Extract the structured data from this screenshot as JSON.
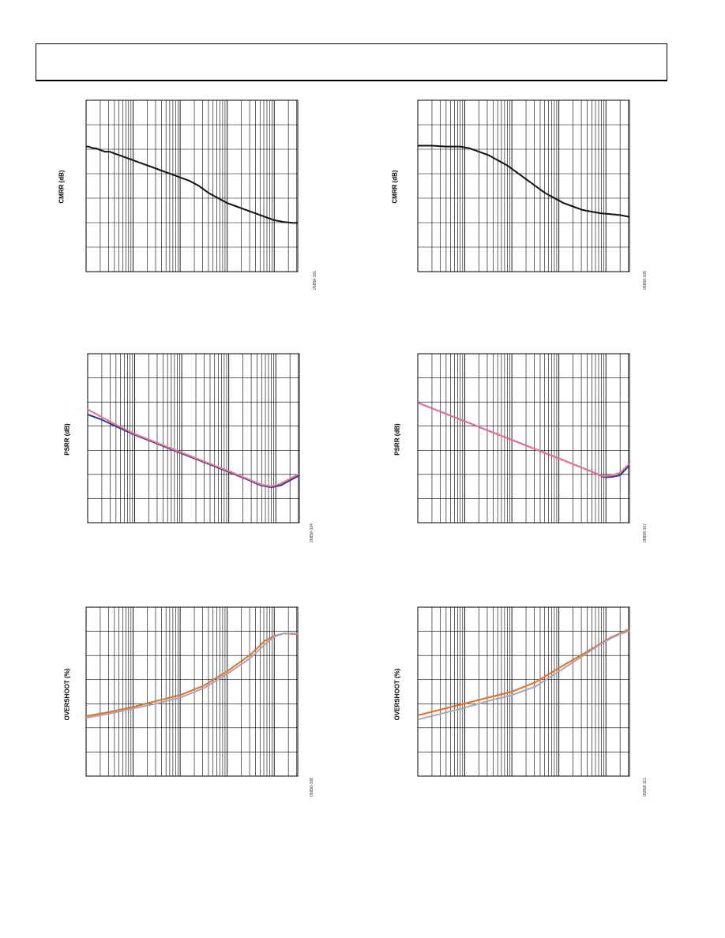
{
  "page": {
    "header_title": ""
  },
  "chart_data": [
    {
      "type": "line",
      "ylabel": "CMRR (dB)",
      "figure_id": "05858-101",
      "xscale": "log",
      "decades": 4.5,
      "grid": true,
      "series": [
        {
          "color": "#111111",
          "points": [
            [
              0.0,
              0.27
            ],
            [
              0.05,
              0.27
            ],
            [
              0.1,
              0.275
            ],
            [
              0.15,
              0.28
            ],
            [
              0.2,
              0.28
            ],
            [
              0.3,
              0.29
            ],
            [
              0.4,
              0.3
            ],
            [
              0.5,
              0.3
            ],
            [
              0.6,
              0.31
            ],
            [
              0.7,
              0.32
            ],
            [
              0.8,
              0.33
            ],
            [
              1.0,
              0.35
            ],
            [
              1.2,
              0.37
            ],
            [
              1.4,
              0.39
            ],
            [
              1.6,
              0.41
            ],
            [
              1.8,
              0.43
            ],
            [
              2.0,
              0.45
            ],
            [
              2.2,
              0.47
            ],
            [
              2.4,
              0.5
            ],
            [
              2.6,
              0.54
            ],
            [
              2.8,
              0.57
            ],
            [
              3.0,
              0.6
            ],
            [
              3.2,
              0.62
            ],
            [
              3.4,
              0.64
            ],
            [
              3.6,
              0.66
            ],
            [
              3.8,
              0.68
            ],
            [
              4.0,
              0.7
            ],
            [
              4.2,
              0.71
            ],
            [
              4.4,
              0.715
            ],
            [
              4.5,
              0.715
            ]
          ]
        }
      ]
    },
    {
      "type": "line",
      "ylabel": "CMRR (dB)",
      "figure_id": "05858-105",
      "xscale": "log",
      "decades": 4.5,
      "grid": true,
      "series": [
        {
          "color": "#111111",
          "points": [
            [
              0.0,
              0.265
            ],
            [
              0.3,
              0.265
            ],
            [
              0.6,
              0.27
            ],
            [
              0.9,
              0.27
            ],
            [
              1.1,
              0.28
            ],
            [
              1.3,
              0.3
            ],
            [
              1.5,
              0.32
            ],
            [
              1.7,
              0.35
            ],
            [
              1.9,
              0.38
            ],
            [
              2.1,
              0.42
            ],
            [
              2.3,
              0.46
            ],
            [
              2.5,
              0.5
            ],
            [
              2.7,
              0.54
            ],
            [
              2.9,
              0.57
            ],
            [
              3.1,
              0.6
            ],
            [
              3.3,
              0.62
            ],
            [
              3.5,
              0.64
            ],
            [
              3.7,
              0.65
            ],
            [
              3.9,
              0.66
            ],
            [
              4.1,
              0.665
            ],
            [
              4.3,
              0.67
            ],
            [
              4.5,
              0.68
            ]
          ]
        }
      ]
    },
    {
      "type": "line",
      "ylabel": "PSRR (dB)",
      "figure_id": "05858-104",
      "xscale": "log",
      "decades": 4.5,
      "grid": true,
      "series": [
        {
          "color": "#1f3f8f",
          "points": [
            [
              0.0,
              0.36
            ],
            [
              0.3,
              0.39
            ],
            [
              0.6,
              0.43
            ],
            [
              1.0,
              0.48
            ],
            [
              1.5,
              0.535
            ],
            [
              2.0,
              0.59
            ],
            [
              2.5,
              0.645
            ],
            [
              3.0,
              0.7
            ],
            [
              3.4,
              0.745
            ],
            [
              3.6,
              0.77
            ],
            [
              3.7,
              0.78
            ],
            [
              3.9,
              0.79
            ],
            [
              4.1,
              0.78
            ],
            [
              4.3,
              0.75
            ],
            [
              4.5,
              0.72
            ]
          ]
        },
        {
          "color": "#f07090",
          "points": [
            [
              0.0,
              0.33
            ],
            [
              0.3,
              0.375
            ],
            [
              0.6,
              0.42
            ],
            [
              1.0,
              0.475
            ],
            [
              1.5,
              0.53
            ],
            [
              2.0,
              0.585
            ],
            [
              2.5,
              0.64
            ],
            [
              3.0,
              0.695
            ],
            [
              3.4,
              0.74
            ],
            [
              3.6,
              0.765
            ],
            [
              3.7,
              0.775
            ],
            [
              3.9,
              0.785
            ],
            [
              4.1,
              0.77
            ],
            [
              4.3,
              0.74
            ],
            [
              4.5,
              0.71
            ]
          ]
        }
      ]
    },
    {
      "type": "line",
      "ylabel": "PSRR (dB)",
      "figure_id": "05858-107",
      "xscale": "log",
      "decades": 4.5,
      "grid": true,
      "series": [
        {
          "color": "#1f3f8f",
          "points": [
            [
              0.0,
              0.29
            ],
            [
              0.5,
              0.345
            ],
            [
              1.0,
              0.4
            ],
            [
              1.5,
              0.455
            ],
            [
              2.0,
              0.51
            ],
            [
              2.5,
              0.565
            ],
            [
              3.0,
              0.62
            ],
            [
              3.5,
              0.675
            ],
            [
              3.8,
              0.71
            ],
            [
              3.95,
              0.73
            ],
            [
              4.1,
              0.73
            ],
            [
              4.3,
              0.72
            ],
            [
              4.5,
              0.66
            ]
          ]
        },
        {
          "color": "#f07090",
          "points": [
            [
              0.0,
              0.29
            ],
            [
              0.5,
              0.345
            ],
            [
              1.0,
              0.4
            ],
            [
              1.5,
              0.455
            ],
            [
              2.0,
              0.51
            ],
            [
              2.5,
              0.565
            ],
            [
              3.0,
              0.62
            ],
            [
              3.5,
              0.675
            ],
            [
              3.8,
              0.71
            ],
            [
              3.95,
              0.725
            ],
            [
              4.1,
              0.72
            ],
            [
              4.3,
              0.705
            ],
            [
              4.5,
              0.65
            ]
          ]
        }
      ]
    },
    {
      "type": "line",
      "ylabel": "OVERSHOOT (%)",
      "figure_id": "05858-108",
      "xscale": "log",
      "decades": 4.5,
      "grid": true,
      "series": [
        {
          "color": "#ee6a1a",
          "points": [
            [
              0.0,
              0.645
            ],
            [
              0.5,
              0.62
            ],
            [
              1.0,
              0.59
            ],
            [
              1.5,
              0.555
            ],
            [
              2.0,
              0.52
            ],
            [
              2.5,
              0.465
            ],
            [
              3.0,
              0.38
            ],
            [
              3.5,
              0.28
            ],
            [
              3.8,
              0.2
            ],
            [
              4.0,
              0.17
            ],
            [
              4.2,
              0.155
            ],
            [
              4.5,
              0.16
            ]
          ]
        },
        {
          "color": "#9aa8c8",
          "points": [
            [
              0.0,
              0.655
            ],
            [
              0.5,
              0.63
            ],
            [
              1.0,
              0.6
            ],
            [
              1.5,
              0.57
            ],
            [
              2.0,
              0.535
            ],
            [
              2.5,
              0.48
            ],
            [
              3.0,
              0.395
            ],
            [
              3.5,
              0.3
            ],
            [
              3.8,
              0.22
            ],
            [
              4.0,
              0.175
            ],
            [
              4.2,
              0.155
            ],
            [
              4.5,
              0.155
            ]
          ]
        }
      ]
    },
    {
      "type": "line",
      "ylabel": "OVERSHOOT (%)",
      "figure_id": "05858-111",
      "xscale": "log",
      "decades": 4.5,
      "grid": true,
      "series": [
        {
          "color": "#ee6a1a",
          "points": [
            [
              0.0,
              0.64
            ],
            [
              0.5,
              0.605
            ],
            [
              1.0,
              0.57
            ],
            [
              1.5,
              0.535
            ],
            [
              2.0,
              0.5
            ],
            [
              2.5,
              0.445
            ],
            [
              3.0,
              0.36
            ],
            [
              3.5,
              0.28
            ],
            [
              3.8,
              0.23
            ],
            [
              4.1,
              0.18
            ],
            [
              4.3,
              0.155
            ],
            [
              4.5,
              0.13
            ]
          ]
        },
        {
          "color": "#9aa8c8",
          "points": [
            [
              0.0,
              0.665
            ],
            [
              0.5,
              0.63
            ],
            [
              1.0,
              0.595
            ],
            [
              1.5,
              0.555
            ],
            [
              2.0,
              0.52
            ],
            [
              2.5,
              0.47
            ],
            [
              3.0,
              0.38
            ],
            [
              3.5,
              0.29
            ],
            [
              3.8,
              0.235
            ],
            [
              4.1,
              0.185
            ],
            [
              4.3,
              0.16
            ],
            [
              4.5,
              0.14
            ]
          ]
        }
      ]
    }
  ]
}
